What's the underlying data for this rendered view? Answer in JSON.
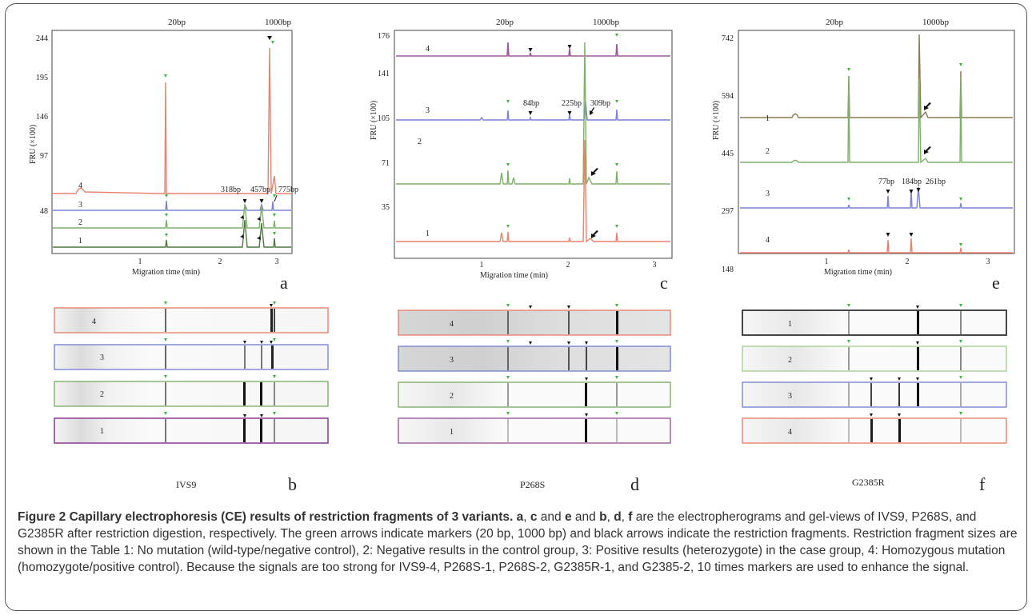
{
  "common": {
    "marker_left": "20bp",
    "marker_right": "1000bp",
    "xlabel": "Migration time (min)",
    "ylabel": "FRU (×100)",
    "xticks": [
      "1",
      "2",
      "3"
    ]
  },
  "colors": {
    "red": "#e8826e",
    "blue": "#7a84d6",
    "green": "#7fb06a",
    "darkgreen": "#4f7a3e",
    "purple": "#9c5aa0",
    "olive": "#8a7a52",
    "marker_green": "#3fb53f"
  },
  "panels": {
    "a": {
      "letter": "a",
      "yticks": [
        "244",
        "195",
        "146",
        "97",
        "48"
      ],
      "trace_labels": [
        "4",
        "3",
        "2",
        "1"
      ],
      "fragments": [
        "318bp",
        "457bp",
        "775bp"
      ]
    },
    "c": {
      "letter": "c",
      "yticks": [
        "176",
        "141",
        "105",
        "71",
        "35"
      ],
      "trace_labels": [
        "4",
        "3",
        "2",
        "1"
      ],
      "fragments": [
        "84bp",
        "225bp",
        "309bp"
      ]
    },
    "e": {
      "letter": "e",
      "yticks": [
        "742",
        "594",
        "445",
        "297",
        "148"
      ],
      "trace_labels": [
        "1",
        "2",
        "3",
        "4"
      ],
      "fragments": [
        "77bp",
        "184bp",
        "261bp"
      ]
    },
    "b": {
      "letter": "b",
      "name": "IVS9",
      "lane_labels": [
        "4",
        "3",
        "2",
        "1"
      ]
    },
    "d": {
      "letter": "d",
      "name": "P268S",
      "lane_labels": [
        "4",
        "3",
        "2",
        "1"
      ]
    },
    "f": {
      "letter": "f",
      "name": "G2385R",
      "lane_labels": [
        "1",
        "2",
        "3",
        "4"
      ]
    }
  },
  "caption": {
    "title": "Figure 2 Capillary electrophoresis (CE) results of restriction fragments of 3 variants.",
    "letter_a": "a",
    "letter_c": "c",
    "letter_e": "e",
    "letter_b": "b",
    "letter_d": "d",
    "letter_f": "f",
    "sep1": ", ",
    "sep2": " and ",
    "sep3": ", ",
    "sep4": ", ",
    "text": " are the electropherograms and gel-views of IVS9, P268S, and G2385R after restriction digestion, respectively. The green arrows indicate markers (20 bp, 1000 bp) and black arrows indicate the restriction fragments. Restriction fragment sizes are shown in the Table 1: No mutation (wild-type/negative control), 2: Negative results in the control group, 3: Positive results (heterozygote) in the case group, 4: Homozygous mutation (homozygote/positive control). Because the signals are too strong for IVS9-4, P268S-1, P268S-2, G2385R-1, and G2385-2, 10 times markers are used to enhance the signal."
  }
}
